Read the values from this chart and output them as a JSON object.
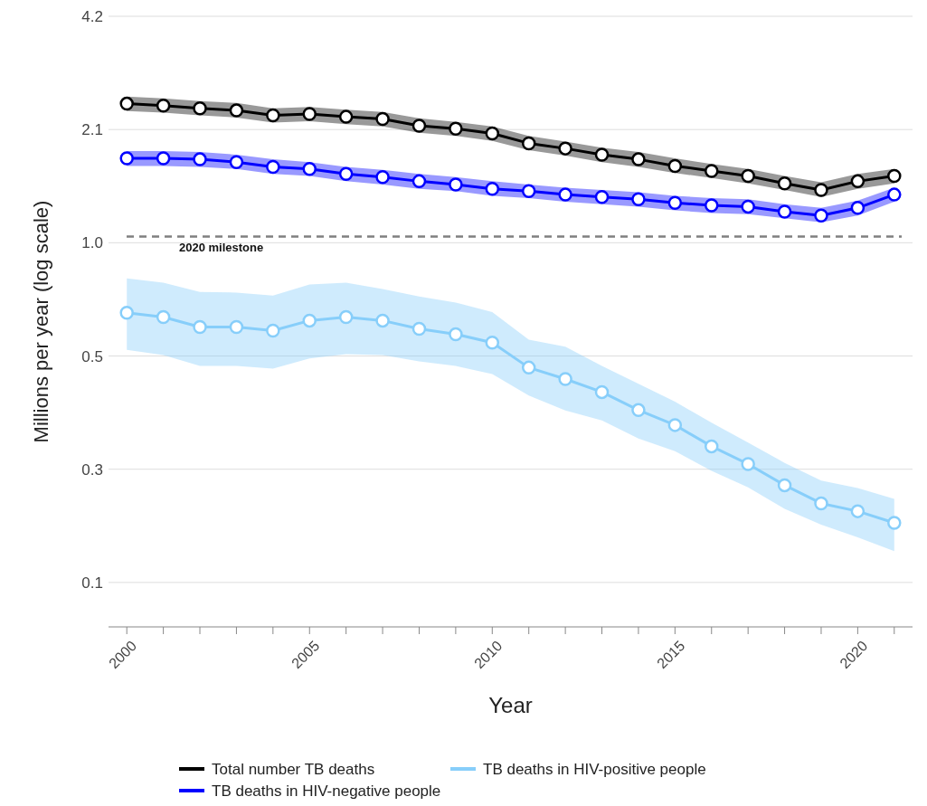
{
  "chart_data": {
    "type": "line",
    "xlabel": "Year",
    "ylabel": "Millions per year (log scale)",
    "log": "y",
    "grid": "y",
    "legend": "bottom",
    "marker": "circle",
    "line_style": "solid",
    "x": [
      2000,
      2001,
      2002,
      2003,
      2004,
      2005,
      2006,
      2007,
      2008,
      2009,
      2010,
      2011,
      2012,
      2013,
      2014,
      2015,
      2016,
      2017,
      2018,
      2019,
      2020,
      2021
    ],
    "xlim": [
      1999.5,
      2021.5
    ],
    "xticks": [
      2000,
      {
        "value": 2001,
        "label": null
      },
      {
        "value": 2002,
        "label": null
      },
      {
        "value": 2003,
        "label": null
      },
      {
        "value": 2004,
        "label": null
      },
      2005,
      {
        "value": 2006,
        "label": null
      },
      {
        "value": 2007,
        "label": null
      },
      {
        "value": 2008,
        "label": null
      },
      {
        "value": 2009,
        "label": null
      },
      2010,
      {
        "value": 2011,
        "label": null
      },
      {
        "value": 2012,
        "label": null
      },
      {
        "value": 2013,
        "label": null
      },
      {
        "value": 2014,
        "label": null
      },
      2015,
      {
        "value": 2016,
        "label": null
      },
      {
        "value": 2017,
        "label": null
      },
      {
        "value": 2018,
        "label": null
      },
      {
        "value": 2019,
        "label": null
      },
      2020,
      {
        "value": 2021,
        "label": null
      }
    ],
    "ylim": [
      0.1,
      4.2
    ],
    "yticks": [
      {
        "value": 0.13125,
        "label": "0.1"
      },
      {
        "value": 0.2625,
        "label": "0.3"
      },
      {
        "value": 0.525,
        "label": "0.5"
      },
      {
        "value": 1.05,
        "label": "1.0"
      },
      2.1,
      4.2
    ],
    "ref_lines": [
      {
        "axis": "y",
        "value": 1.09,
        "label": "2020 milestone",
        "color": "#808080",
        "line_style": "dashed"
      }
    ],
    "series": [
      {
        "name": "Total number TB deaths",
        "color": "#000000",
        "values": [
          2.46,
          2.43,
          2.39,
          2.36,
          2.29,
          2.31,
          2.27,
          2.24,
          2.15,
          2.11,
          2.05,
          1.93,
          1.87,
          1.8,
          1.75,
          1.68,
          1.63,
          1.58,
          1.51,
          1.45,
          1.53,
          1.58
        ],
        "upper": [
          2.57,
          2.54,
          2.5,
          2.47,
          2.39,
          2.41,
          2.37,
          2.34,
          2.25,
          2.2,
          2.14,
          2.02,
          1.95,
          1.88,
          1.83,
          1.76,
          1.7,
          1.65,
          1.58,
          1.52,
          1.6,
          1.65
        ],
        "lower": [
          2.35,
          2.33,
          2.29,
          2.26,
          2.19,
          2.21,
          2.17,
          2.14,
          2.06,
          2.02,
          1.96,
          1.85,
          1.79,
          1.72,
          1.67,
          1.61,
          1.56,
          1.51,
          1.45,
          1.39,
          1.46,
          1.51
        ]
      },
      {
        "name": "TB deaths in HIV-positive people",
        "color": "#87cefa",
        "values": [
          0.684,
          0.666,
          0.627,
          0.627,
          0.613,
          0.652,
          0.666,
          0.652,
          0.62,
          0.6,
          0.57,
          0.489,
          0.456,
          0.421,
          0.377,
          0.344,
          0.302,
          0.271,
          0.238,
          0.213,
          0.203,
          0.189
        ],
        "upper": [
          0.844,
          0.822,
          0.777,
          0.774,
          0.76,
          0.813,
          0.822,
          0.791,
          0.756,
          0.728,
          0.687,
          0.58,
          0.556,
          0.494,
          0.443,
          0.397,
          0.349,
          0.309,
          0.273,
          0.245,
          0.234,
          0.219
        ],
        "lower": [
          0.545,
          0.528,
          0.494,
          0.494,
          0.486,
          0.517,
          0.531,
          0.528,
          0.508,
          0.494,
          0.47,
          0.412,
          0.376,
          0.354,
          0.317,
          0.293,
          0.26,
          0.235,
          0.206,
          0.187,
          0.173,
          0.159
        ]
      },
      {
        "name": "TB deaths in HIV-negative people",
        "color": "#0000ff",
        "values": [
          1.76,
          1.76,
          1.75,
          1.72,
          1.67,
          1.65,
          1.6,
          1.57,
          1.53,
          1.5,
          1.46,
          1.44,
          1.41,
          1.39,
          1.37,
          1.34,
          1.32,
          1.31,
          1.27,
          1.24,
          1.3,
          1.41
        ],
        "upper": [
          1.84,
          1.84,
          1.83,
          1.8,
          1.75,
          1.72,
          1.67,
          1.64,
          1.6,
          1.57,
          1.53,
          1.5,
          1.47,
          1.45,
          1.43,
          1.4,
          1.38,
          1.37,
          1.33,
          1.3,
          1.36,
          1.47
        ],
        "lower": [
          1.68,
          1.68,
          1.67,
          1.65,
          1.6,
          1.58,
          1.53,
          1.5,
          1.46,
          1.44,
          1.4,
          1.38,
          1.35,
          1.33,
          1.31,
          1.28,
          1.26,
          1.25,
          1.22,
          1.19,
          1.24,
          1.35
        ]
      }
    ]
  }
}
